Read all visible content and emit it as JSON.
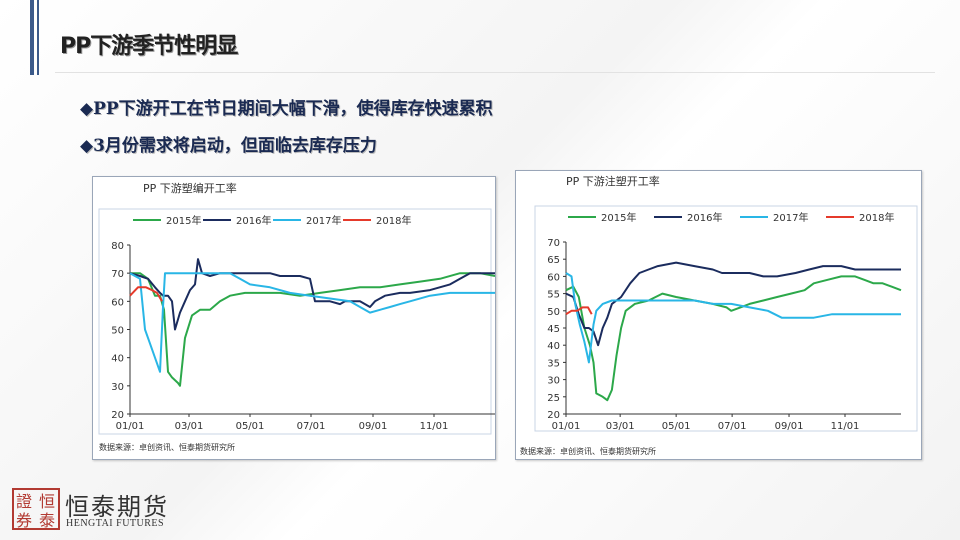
{
  "slide": {
    "title": "PP下游季节性明显",
    "bullets": [
      "◆PP下游开工在节日期间大幅下滑，使得库存快速累积",
      "◆3月份需求将启动，但面临去库存压力"
    ],
    "logo_cn": "恒泰期货",
    "logo_en": "HENGTAI FUTURES",
    "logo_seal": "證恒券泰"
  },
  "chart_data": [
    {
      "type": "line",
      "title": "PP 下游塑编开工率",
      "source": "数据来源：卓创资讯、恒泰期货研究所",
      "ylim": [
        20,
        80
      ],
      "yticks": [
        20,
        30,
        40,
        50,
        60,
        70,
        80
      ],
      "xlim": [
        0,
        365
      ],
      "xticks": [
        {
          "label": "01/01",
          "day": 0
        },
        {
          "label": "03/01",
          "day": 59
        },
        {
          "label": "05/01",
          "day": 120
        },
        {
          "label": "07/01",
          "day": 181
        },
        {
          "label": "09/01",
          "day": 243
        },
        {
          "label": "11/01",
          "day": 304
        }
      ],
      "series": [
        {
          "name": "2015年",
          "color": "#2ca84a",
          "points": [
            [
              0,
              70
            ],
            [
              10,
              70
            ],
            [
              18,
              68
            ],
            [
              25,
              62
            ],
            [
              30,
              62
            ],
            [
              34,
              57
            ],
            [
              38,
              35
            ],
            [
              42,
              33
            ],
            [
              48,
              31
            ],
            [
              50,
              30
            ],
            [
              55,
              47
            ],
            [
              62,
              55
            ],
            [
              70,
              57
            ],
            [
              80,
              57
            ],
            [
              90,
              60
            ],
            [
              100,
              62
            ],
            [
              115,
              63
            ],
            [
              130,
              63
            ],
            [
              150,
              63
            ],
            [
              170,
              62
            ],
            [
              190,
              63
            ],
            [
              210,
              64
            ],
            [
              230,
              65
            ],
            [
              250,
              65
            ],
            [
              270,
              66
            ],
            [
              290,
              67
            ],
            [
              310,
              68
            ],
            [
              330,
              70
            ],
            [
              350,
              70
            ],
            [
              365,
              69
            ]
          ]
        },
        {
          "name": "2016年",
          "color": "#1b2c5e",
          "points": [
            [
              0,
              70
            ],
            [
              10,
              69
            ],
            [
              18,
              68
            ],
            [
              25,
              65
            ],
            [
              30,
              63
            ],
            [
              33,
              62
            ],
            [
              38,
              62
            ],
            [
              42,
              60
            ],
            [
              45,
              50
            ],
            [
              50,
              56
            ],
            [
              55,
              60
            ],
            [
              60,
              64
            ],
            [
              65,
              66
            ],
            [
              68,
              75
            ],
            [
              72,
              70
            ],
            [
              80,
              69
            ],
            [
              90,
              70
            ],
            [
              110,
              70
            ],
            [
              140,
              70
            ],
            [
              150,
              69
            ],
            [
              170,
              69
            ],
            [
              180,
              68
            ],
            [
              185,
              60
            ],
            [
              200,
              60
            ],
            [
              210,
              59
            ],
            [
              215,
              60
            ],
            [
              230,
              60
            ],
            [
              240,
              58
            ],
            [
              245,
              60
            ],
            [
              255,
              62
            ],
            [
              270,
              63
            ],
            [
              280,
              63
            ],
            [
              300,
              64
            ],
            [
              320,
              66
            ],
            [
              330,
              68
            ],
            [
              340,
              70
            ],
            [
              350,
              70
            ],
            [
              358,
              70
            ],
            [
              365,
              70
            ]
          ]
        },
        {
          "name": "2017年",
          "color": "#29b6e6",
          "points": [
            [
              0,
              70
            ],
            [
              10,
              68
            ],
            [
              15,
              50
            ],
            [
              20,
              45
            ],
            [
              25,
              40
            ],
            [
              30,
              35
            ],
            [
              33,
              58
            ],
            [
              35,
              70
            ],
            [
              45,
              70
            ],
            [
              55,
              70
            ],
            [
              65,
              70
            ],
            [
              80,
              70
            ],
            [
              100,
              70
            ],
            [
              110,
              68
            ],
            [
              120,
              66
            ],
            [
              140,
              65
            ],
            [
              160,
              63
            ],
            [
              180,
              62
            ],
            [
              200,
              61
            ],
            [
              220,
              60
            ],
            [
              230,
              58
            ],
            [
              240,
              56
            ],
            [
              250,
              57
            ],
            [
              260,
              58
            ],
            [
              270,
              59
            ],
            [
              280,
              60
            ],
            [
              300,
              62
            ],
            [
              320,
              63
            ],
            [
              340,
              63
            ],
            [
              365,
              63
            ]
          ]
        },
        {
          "name": "2018年",
          "color": "#e53a2b",
          "points": [
            [
              0,
              62
            ],
            [
              8,
              65
            ],
            [
              16,
              65
            ],
            [
              22,
              64
            ],
            [
              27,
              63
            ],
            [
              32,
              60
            ]
          ]
        }
      ]
    },
    {
      "type": "line",
      "title": "PP 下游注塑开工率",
      "source": "数据来源：卓创资讯、恒泰期货研究所",
      "ylim": [
        20,
        70
      ],
      "yticks": [
        20,
        25,
        30,
        35,
        40,
        45,
        50,
        55,
        60,
        65,
        70
      ],
      "xlim": [
        0,
        365
      ],
      "xticks": [
        {
          "label": "01/01",
          "day": 0
        },
        {
          "label": "03/01",
          "day": 59
        },
        {
          "label": "05/01",
          "day": 120
        },
        {
          "label": "07/01",
          "day": 181
        },
        {
          "label": "09/01",
          "day": 243
        },
        {
          "label": "11/01",
          "day": 304
        }
      ],
      "series": [
        {
          "name": "2015年",
          "color": "#2ca84a",
          "points": [
            [
              0,
              56
            ],
            [
              8,
              57
            ],
            [
              14,
              54
            ],
            [
              20,
              45
            ],
            [
              26,
              40
            ],
            [
              30,
              35
            ],
            [
              33,
              26
            ],
            [
              40,
              25
            ],
            [
              45,
              24
            ],
            [
              50,
              27
            ],
            [
              55,
              37
            ],
            [
              60,
              45
            ],
            [
              65,
              50
            ],
            [
              75,
              52
            ],
            [
              90,
              53
            ],
            [
              105,
              55
            ],
            [
              120,
              54
            ],
            [
              140,
              53
            ],
            [
              160,
              52
            ],
            [
              175,
              51
            ],
            [
              180,
              50
            ],
            [
              190,
              51
            ],
            [
              200,
              52
            ],
            [
              215,
              53
            ],
            [
              230,
              54
            ],
            [
              245,
              55
            ],
            [
              260,
              56
            ],
            [
              270,
              58
            ],
            [
              285,
              59
            ],
            [
              300,
              60
            ],
            [
              315,
              60
            ],
            [
              325,
              59
            ],
            [
              335,
              58
            ],
            [
              345,
              58
            ],
            [
              355,
              57
            ],
            [
              365,
              56
            ]
          ]
        },
        {
          "name": "2016年",
          "color": "#1b2c5e",
          "points": [
            [
              0,
              55
            ],
            [
              8,
              54
            ],
            [
              14,
              49
            ],
            [
              20,
              45
            ],
            [
              25,
              45
            ],
            [
              30,
              44
            ],
            [
              35,
              40
            ],
            [
              40,
              45
            ],
            [
              45,
              48
            ],
            [
              50,
              52
            ],
            [
              60,
              54
            ],
            [
              70,
              58
            ],
            [
              80,
              61
            ],
            [
              90,
              62
            ],
            [
              100,
              63
            ],
            [
              120,
              64
            ],
            [
              140,
              63
            ],
            [
              160,
              62
            ],
            [
              170,
              61
            ],
            [
              180,
              61
            ],
            [
              200,
              61
            ],
            [
              215,
              60
            ],
            [
              230,
              60
            ],
            [
              250,
              61
            ],
            [
              265,
              62
            ],
            [
              280,
              63
            ],
            [
              300,
              63
            ],
            [
              315,
              62
            ],
            [
              330,
              62
            ],
            [
              350,
              62
            ],
            [
              365,
              62
            ]
          ]
        },
        {
          "name": "2017年",
          "color": "#29b6e6",
          "points": [
            [
              0,
              61
            ],
            [
              6,
              60
            ],
            [
              10,
              52
            ],
            [
              15,
              46
            ],
            [
              20,
              41
            ],
            [
              25,
              35
            ],
            [
              30,
              46
            ],
            [
              33,
              50
            ],
            [
              40,
              52
            ],
            [
              50,
              53
            ],
            [
              60,
              53
            ],
            [
              80,
              53
            ],
            [
              100,
              53
            ],
            [
              120,
              53
            ],
            [
              140,
              53
            ],
            [
              160,
              52
            ],
            [
              180,
              52
            ],
            [
              200,
              51
            ],
            [
              220,
              50
            ],
            [
              235,
              48
            ],
            [
              250,
              48
            ],
            [
              270,
              48
            ],
            [
              290,
              49
            ],
            [
              310,
              49
            ],
            [
              330,
              49
            ],
            [
              365,
              49
            ]
          ]
        },
        {
          "name": "2018年",
          "color": "#e53a2b",
          "points": [
            [
              0,
              49
            ],
            [
              6,
              50
            ],
            [
              12,
              50
            ],
            [
              18,
              51
            ],
            [
              24,
              51
            ],
            [
              28,
              49
            ]
          ]
        }
      ]
    }
  ]
}
